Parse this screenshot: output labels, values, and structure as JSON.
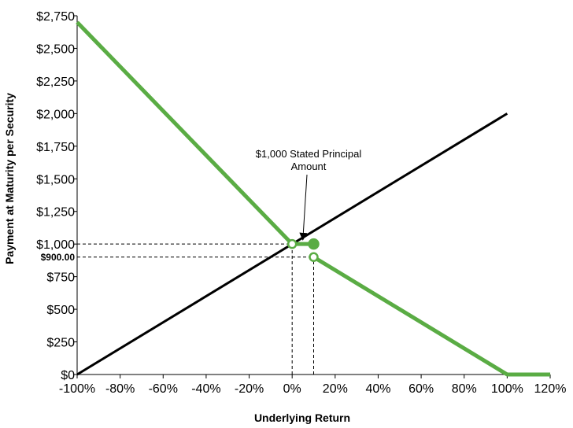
{
  "chart_data": {
    "type": "line",
    "title": "",
    "xlabel": "Underlying Return",
    "ylabel": "Payment at Maturity per Security",
    "xlim": [
      -100,
      120
    ],
    "ylim": [
      0,
      2750
    ],
    "x_ticks": [
      -100,
      -80,
      -60,
      -40,
      -20,
      0,
      20,
      40,
      60,
      80,
      100,
      120
    ],
    "x_tick_labels": [
      "-100%",
      "-80%",
      "-60%",
      "-40%",
      "-20%",
      "0%",
      "20%",
      "40%",
      "60%",
      "80%",
      "100%",
      "120%"
    ],
    "y_ticks": [
      0,
      250,
      500,
      750,
      1000,
      1250,
      1500,
      1750,
      2000,
      2250,
      2500,
      2750
    ],
    "y_tick_labels": [
      "$0",
      "$250",
      "$500",
      "$750",
      "$1,000",
      "$1,250",
      "$1,500",
      "$1,750",
      "$2,000",
      "$2,250",
      "$2,500",
      "$2,750"
    ],
    "grid": false,
    "legend": "none",
    "colors": {
      "underlying": "#000000",
      "security": "#5aac44",
      "reference": "#000000"
    },
    "series": [
      {
        "role": "underlying",
        "points": [
          [
            -100,
            0
          ],
          [
            100,
            2000
          ]
        ]
      },
      {
        "role": "security-segment-1",
        "points": [
          [
            -100,
            2700
          ],
          [
            0,
            1000
          ]
        ]
      },
      {
        "role": "security-segment-2",
        "points": [
          [
            0,
            1000
          ],
          [
            10,
            1000
          ]
        ]
      },
      {
        "role": "security-segment-3",
        "points": [
          [
            10,
            900
          ],
          [
            100,
            0
          ],
          [
            120,
            0
          ]
        ]
      }
    ],
    "markers": [
      {
        "x": 0,
        "y": 1000,
        "style": "open"
      },
      {
        "x": 10,
        "y": 1000,
        "style": "filled"
      },
      {
        "x": 10,
        "y": 900,
        "style": "open"
      }
    ],
    "reference_lines": [
      {
        "orientation": "horizontal",
        "y": 1000,
        "x_from": -100,
        "x_to": 0
      },
      {
        "orientation": "horizontal",
        "y": 900,
        "x_from": -100,
        "x_to": 10
      },
      {
        "orientation": "vertical",
        "x": 0,
        "y_from": 0,
        "y_to": 1000
      },
      {
        "orientation": "vertical",
        "x": 10,
        "y_from": 0,
        "y_to": 900
      }
    ],
    "annotations": [
      {
        "lines": [
          "$1,000 Stated Principal",
          "Amount"
        ],
        "arrow_to": [
          5,
          1020
        ]
      }
    ],
    "marker_labels": [
      {
        "text": "$900.00",
        "y": 900
      }
    ]
  }
}
